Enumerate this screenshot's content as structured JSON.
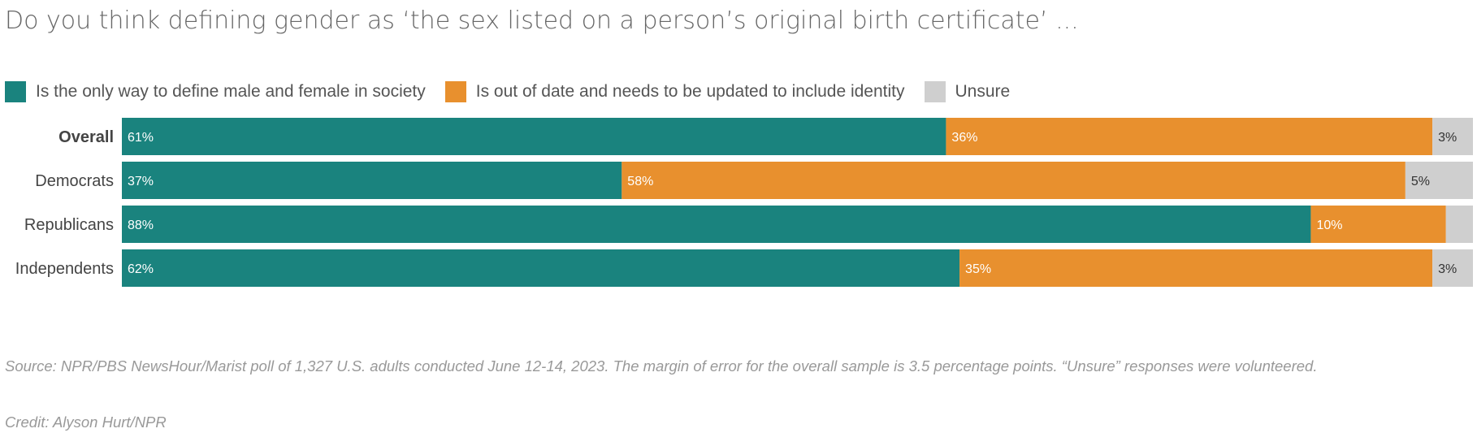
{
  "title": "Do you think defining gender as ‘the sex listed on a person’s original birth certificate’ ...",
  "legend": [
    {
      "label": "Is the only way to define male and female in society",
      "color": "#1a837e"
    },
    {
      "label": "Is out of date and needs to be updated to include identity",
      "color": "#e8902e"
    },
    {
      "label": "Unsure",
      "color": "#cfcfcf"
    }
  ],
  "chart_data": {
    "type": "bar",
    "orientation": "horizontal",
    "stacked": true,
    "categories": [
      "Overall",
      "Democrats",
      "Republicans",
      "Independents"
    ],
    "series": [
      {
        "name": "Is the only way to define male and female in society",
        "values": [
          61,
          37,
          88,
          62
        ],
        "labels": [
          "61%",
          "37%",
          "88%",
          "62%"
        ],
        "color": "#1a837e"
      },
      {
        "name": "Is out of date and needs to be updated to include identity",
        "values": [
          36,
          58,
          10,
          35
        ],
        "labels": [
          "36%",
          "58%",
          "10%",
          "35%"
        ],
        "color": "#e8902e"
      },
      {
        "name": "Unsure",
        "values": [
          3,
          5,
          2,
          3
        ],
        "labels": [
          "3%",
          "5%",
          "",
          "3%"
        ],
        "color": "#cfcfcf"
      }
    ],
    "bold_category": "Overall",
    "xlim": [
      0,
      100
    ]
  },
  "footnote": "Source: NPR/PBS NewsHour/Marist poll of 1,327 U.S. adults conducted June 12-14, 2023. The margin of error for the overall sample is 3.5 percentage points. “Unsure” responses were volunteered.",
  "credit": "Credit: Alyson Hurt/NPR"
}
